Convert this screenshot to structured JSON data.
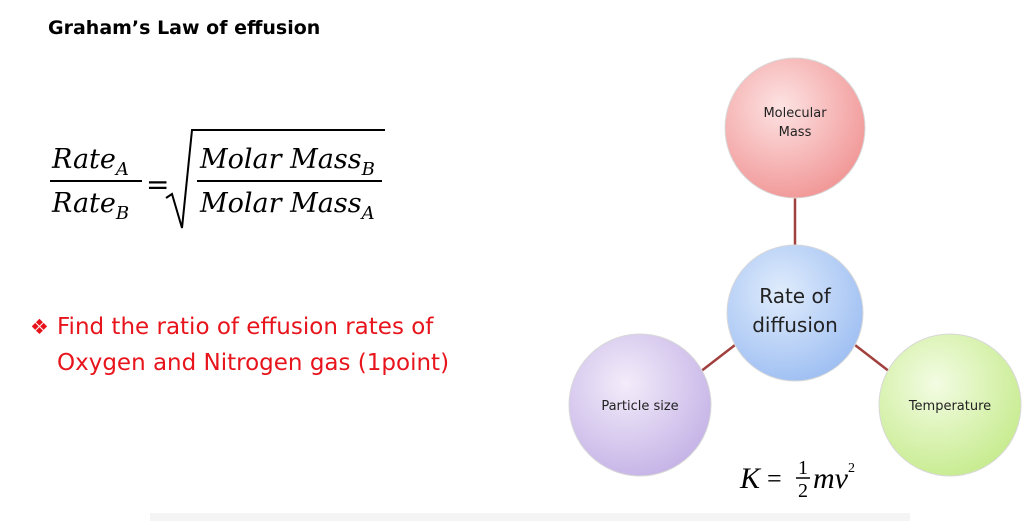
{
  "title": "Graham’s Law of effusion",
  "formula": {
    "numerator": {
      "base": "Rate",
      "sub": "A"
    },
    "denominator": {
      "base": "Rate",
      "sub": "B"
    },
    "equals": "=",
    "root_numerator": {
      "base": "Molar Mass",
      "sub": "B"
    },
    "root_denominator": {
      "base": "Molar Mass",
      "sub": "A"
    }
  },
  "bullet": {
    "marker": "❖",
    "lines": [
      "Find the ratio of effusion rates of",
      "Oxygen and Nitrogen gas  (1point)"
    ]
  },
  "diagram": {
    "center": [
      "Rate of",
      "diffusion"
    ],
    "top": [
      "Molecular",
      "Mass"
    ],
    "left": [
      "Particle size"
    ],
    "right": [
      "Temperature"
    ]
  },
  "energy_formula": {
    "lhs": "K",
    "equals": "=",
    "numerator": "1",
    "denominator": "2",
    "rest": "mv",
    "exponent": "2"
  }
}
